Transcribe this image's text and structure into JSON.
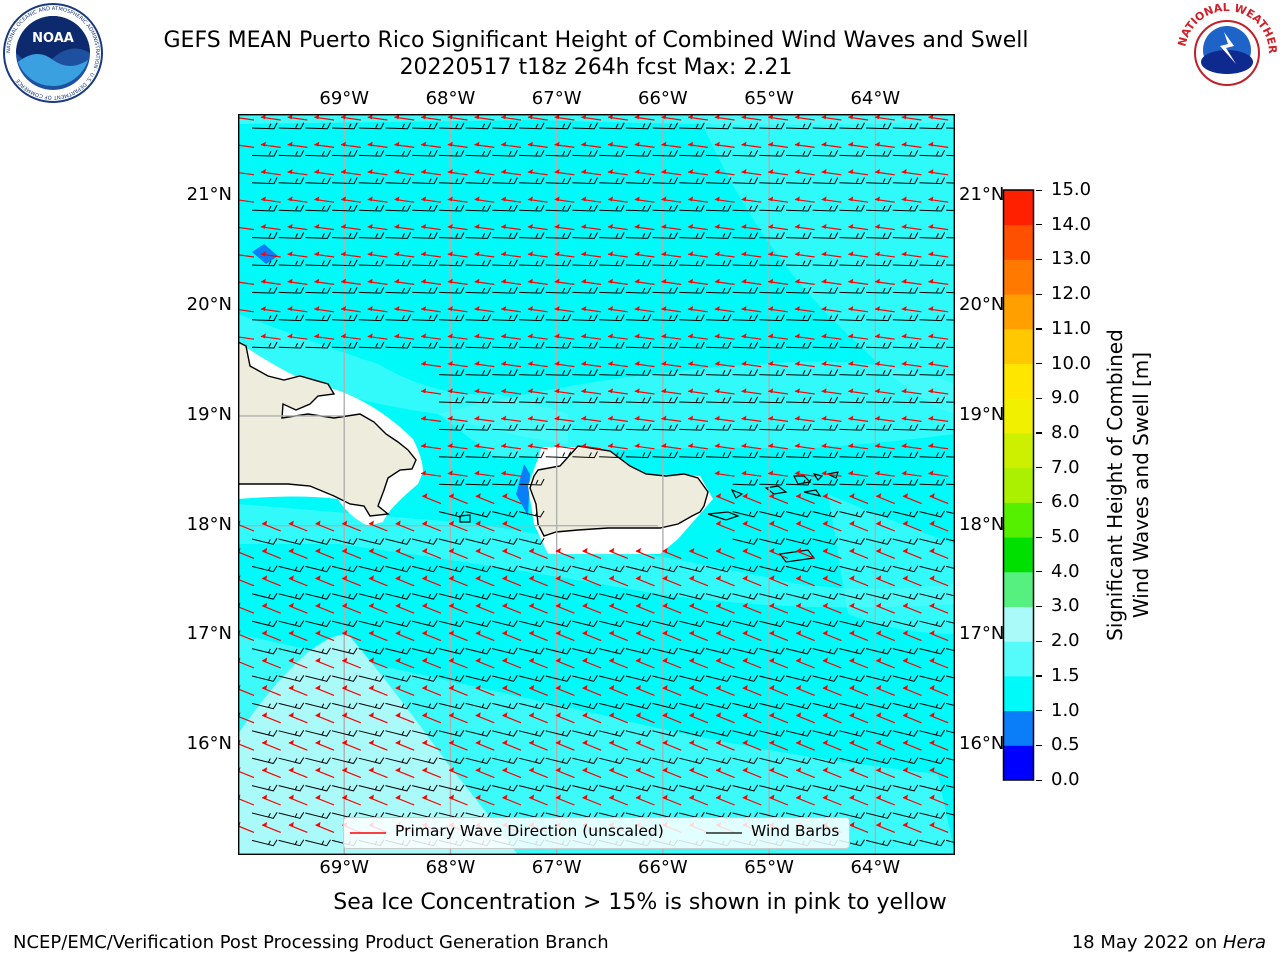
{
  "header": {
    "title_line1": "GEFS MEAN Puerto Rico Significant Height of Combined Wind Waves and Swell",
    "title_line2": "20220517 t18z 264h fcst   Max: 2.21"
  },
  "logos": {
    "noaa": {
      "text": "NOAA",
      "ring_text": "NATIONAL OCEANIC AND ATMOSPHERIC ADMINISTRATION · U.S. DEPARTMENT OF COMMERCE"
    },
    "nws": {
      "ring_text": "NATIONAL WEATHER SERVICE"
    }
  },
  "map": {
    "lon_labels": [
      "69°W",
      "68°W",
      "67°W",
      "66°W",
      "65°W",
      "64°W"
    ],
    "lat_labels": [
      "21°N",
      "20°N",
      "19°N",
      "18°N",
      "17°N",
      "16°N"
    ],
    "lon_range": [
      -70.0,
      -63.25
    ],
    "lat_range": [
      15.0,
      21.75
    ],
    "land_color": "#eeecdc",
    "arrow_color": "#ff0000",
    "barb_color": "#000000"
  },
  "legend": {
    "primary_wave_label": "Primary Wave Direction (unscaled)",
    "wind_barbs_label": "Wind Barbs"
  },
  "colorbar": {
    "label_line1": "Significant Height of Combined",
    "label_line2": "Wind Waves and Swell [m]",
    "ticks": [
      "0.0",
      "0.5",
      "1.0",
      "1.5",
      "2.0",
      "3.0",
      "4.0",
      "5.0",
      "6.0",
      "7.0",
      "8.0",
      "9.0",
      "10.0",
      "11.0",
      "12.0",
      "13.0",
      "14.0",
      "15.0"
    ],
    "colors": [
      "#0000ff",
      "#0a7df8",
      "#00fafa",
      "#55fafa",
      "#aafafa",
      "#55f080",
      "#00e000",
      "#55f000",
      "#aaf000",
      "#ccf000",
      "#f0f000",
      "#ffe600",
      "#ffc800",
      "#ffa000",
      "#ff7800",
      "#ff5000",
      "#ff2000"
    ]
  },
  "ice_note": "Sea Ice Concentration > 15% is shown in pink to yellow",
  "footer": {
    "left": "NCEP/EMC/Verification Post Processing Product Generation Branch",
    "right_prefix": "18 May 2022 on ",
    "right_host": "Hera"
  }
}
